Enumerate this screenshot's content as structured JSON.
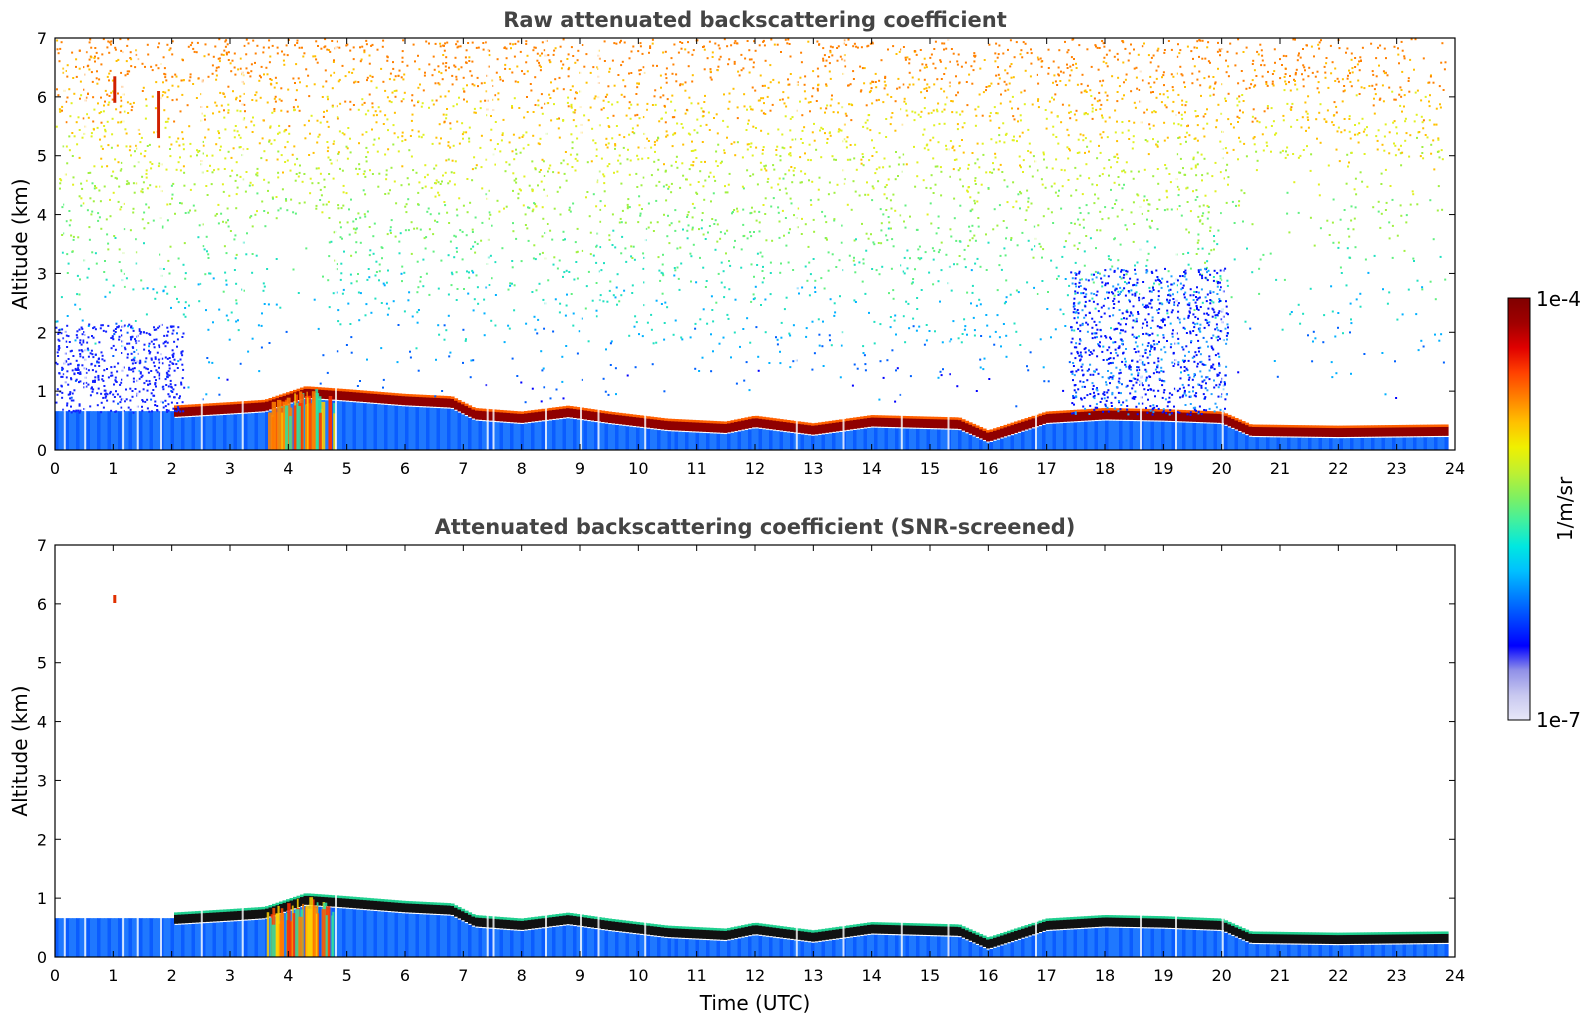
{
  "chart_data": [
    {
      "type": "heatmap",
      "title": "Raw attenuated backscattering coefficient",
      "xlabel": "",
      "ylabel": "Altitude (km)",
      "xlim": [
        0,
        24
      ],
      "ylim": [
        0,
        7
      ],
      "xticks": [
        "0",
        "1",
        "2",
        "3",
        "4",
        "5",
        "6",
        "7",
        "8",
        "9",
        "10",
        "11",
        "12",
        "13",
        "14",
        "15",
        "16",
        "17",
        "18",
        "19",
        "20",
        "21",
        "22",
        "23",
        "24"
      ],
      "yticks": [
        "0",
        "1",
        "2",
        "3",
        "4",
        "5",
        "6",
        "7"
      ],
      "variant": "raw",
      "layer_top_km": [
        {
          "t": 2.0,
          "h": 0.72
        },
        {
          "t": 3.0,
          "h": 0.78
        },
        {
          "t": 3.6,
          "h": 0.82
        },
        {
          "t": 4.3,
          "h": 1.05
        },
        {
          "t": 5.0,
          "h": 1.0
        },
        {
          "t": 6.0,
          "h": 0.92
        },
        {
          "t": 6.8,
          "h": 0.88
        },
        {
          "t": 7.2,
          "h": 0.68
        },
        {
          "t": 8.0,
          "h": 0.62
        },
        {
          "t": 8.8,
          "h": 0.72
        },
        {
          "t": 9.5,
          "h": 0.62
        },
        {
          "t": 10.5,
          "h": 0.5
        },
        {
          "t": 11.5,
          "h": 0.45
        },
        {
          "t": 12.0,
          "h": 0.55
        },
        {
          "t": 13.0,
          "h": 0.42
        },
        {
          "t": 14.0,
          "h": 0.56
        },
        {
          "t": 15.5,
          "h": 0.52
        },
        {
          "t": 16.0,
          "h": 0.3
        },
        {
          "t": 17.0,
          "h": 0.62
        },
        {
          "t": 18.0,
          "h": 0.68
        },
        {
          "t": 19.0,
          "h": 0.66
        },
        {
          "t": 20.0,
          "h": 0.62
        },
        {
          "t": 20.5,
          "h": 0.4
        },
        {
          "t": 22.0,
          "h": 0.38
        },
        {
          "t": 23.8,
          "h": 0.4
        }
      ]
    },
    {
      "type": "heatmap",
      "title": "Attenuated backscattering coefficient (SNR-screened)",
      "xlabel": "Time (UTC)",
      "ylabel": "Altitude (km)",
      "xlim": [
        0,
        24
      ],
      "ylim": [
        0,
        7
      ],
      "xticks": [
        "0",
        "1",
        "2",
        "3",
        "4",
        "5",
        "6",
        "7",
        "8",
        "9",
        "10",
        "11",
        "12",
        "13",
        "14",
        "15",
        "16",
        "17",
        "18",
        "19",
        "20",
        "21",
        "22",
        "23",
        "24"
      ],
      "yticks": [
        "0",
        "1",
        "2",
        "3",
        "4",
        "5",
        "6",
        "7"
      ],
      "variant": "screened"
    }
  ],
  "colorbar": {
    "label": "1/m/sr",
    "max_label": "1e-4",
    "min_label": "1e-7",
    "colors": [
      "#e8e8f8",
      "#c8c8f0",
      "#9090e8",
      "#0000ff",
      "#0040ff",
      "#0080ff",
      "#00c0ff",
      "#00e8e0",
      "#40f0a0",
      "#80f060",
      "#c0f030",
      "#f0f000",
      "#ffc000",
      "#ff8000",
      "#ff4000",
      "#e00000",
      "#a00000",
      "#800000"
    ]
  }
}
